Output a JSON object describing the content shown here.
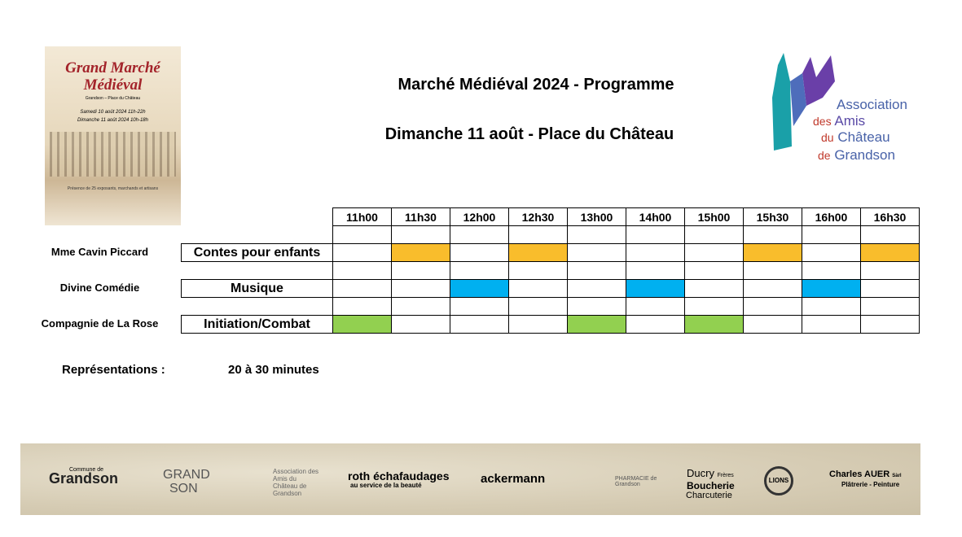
{
  "poster": {
    "title_line1": "Grand Marché",
    "title_line2": "Médiéval",
    "place": "Grandson – Place du Château",
    "date1": "Samedi 10 août 2024 11h-22h",
    "date2": "Dimanche 11 août 2024 10h-18h",
    "footer": "Présence de 25 exposants, marchands et artisans"
  },
  "header": {
    "title": "Marché Médiéval 2024 - Programme",
    "subtitle": "Dimanche 11 août - Place du Château"
  },
  "logo": {
    "line1": "Association",
    "line2a": "des",
    "line2b": "Amis",
    "line3a": "du",
    "line3b": "Château",
    "line4a": "de",
    "line4b": "Grandson"
  },
  "table": {
    "times": [
      "11h00",
      "11h30",
      "12h00",
      "12h30",
      "13h00",
      "14h00",
      "15h00",
      "15h30",
      "16h00",
      "16h30"
    ],
    "rows": [
      {
        "performer": "Mme Cavin Piccard",
        "activity": "Contes pour enfants",
        "color": "#f9bd2c",
        "slots": [
          false,
          true,
          false,
          true,
          false,
          false,
          false,
          true,
          false,
          true
        ]
      },
      {
        "performer": "Divine Comédie",
        "activity": "Musique",
        "color": "#00b0f0",
        "slots": [
          false,
          false,
          true,
          false,
          false,
          true,
          false,
          false,
          true,
          false
        ]
      },
      {
        "performer": "Compagnie de La Rose",
        "activity": "Initiation/Combat",
        "color": "#92d050",
        "slots": [
          true,
          false,
          false,
          false,
          true,
          false,
          true,
          false,
          false,
          false
        ]
      }
    ]
  },
  "note": {
    "label": "Représentations :",
    "value": "20 à 30 minutes"
  },
  "sponsors": {
    "commune_small": "Commune de",
    "commune": "Grandson",
    "grandson_top": "GRAND",
    "grandson_bottom": "SON",
    "assoc": "Association des Amis du Château de Grandson",
    "roth": "roth échafaudages",
    "roth_sub": "au service de la beauté",
    "ackermann": "ackermann",
    "pharmacie": "PHARMACIE de Grandson",
    "ducry": "Ducry",
    "ducry_small": "Frères",
    "boucherie": "Boucherie",
    "charcuterie": "Charcuterie",
    "lions": "LIONS",
    "auer": "Charles AUER",
    "auer_small": "Sàrl",
    "auer_sub": "Plâtrerie - Peinture"
  }
}
